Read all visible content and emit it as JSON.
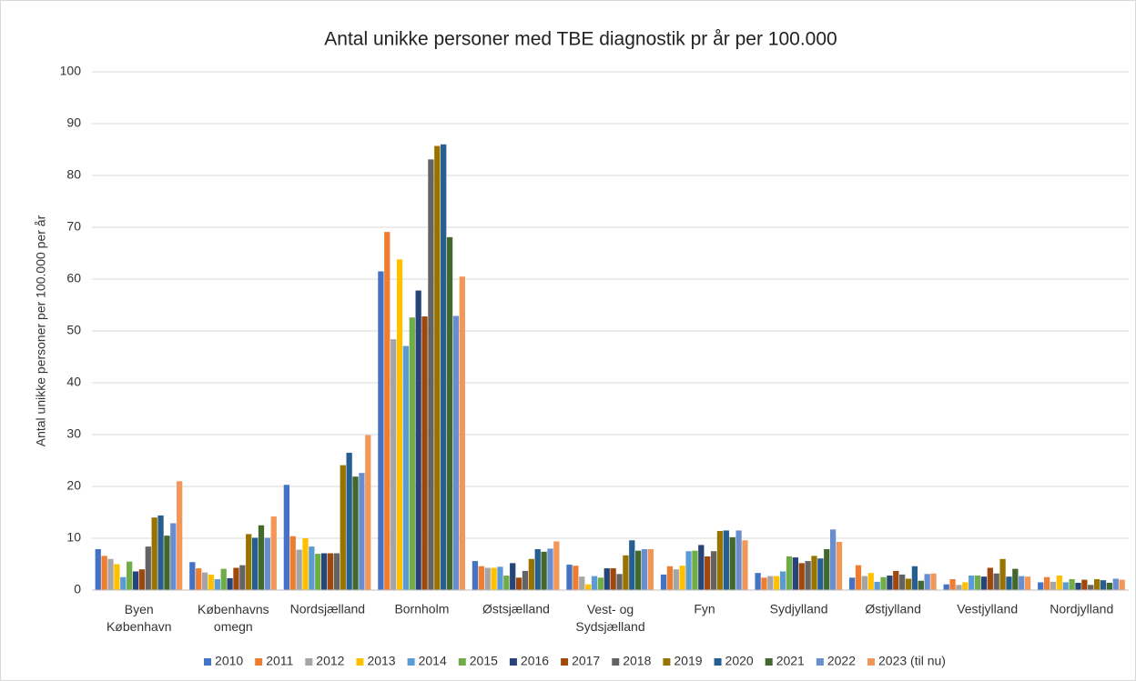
{
  "chart_data": {
    "type": "bar",
    "title": "Antal unikke personer med TBE diagnostik pr år per 100.000",
    "ylabel": "Antal unikke personer  per 100.000 per år",
    "categories": [
      "Byen København",
      "Københavns omegn",
      "Nordsjælland",
      "Bornholm",
      "Østsjælland",
      "Vest- og Sydsjælland",
      "Fyn",
      "Sydjylland",
      "Østjylland",
      "Vestjylland",
      "Nordjylland"
    ],
    "series": [
      {
        "name": "2010",
        "color": "#4472c4",
        "values": [
          7.9,
          5.4,
          20.3,
          61.5,
          5.6,
          4.9,
          3.0,
          3.3,
          2.4,
          1.1,
          1.5
        ]
      },
      {
        "name": "2011",
        "color": "#ed7d31",
        "values": [
          6.6,
          4.2,
          10.4,
          69.1,
          4.6,
          4.7,
          4.6,
          2.4,
          4.8,
          2.1,
          2.5
        ]
      },
      {
        "name": "2012",
        "color": "#a5a5a5",
        "values": [
          6.0,
          3.4,
          7.8,
          48.4,
          4.3,
          2.6,
          4.0,
          2.7,
          2.7,
          1.0,
          1.6
        ]
      },
      {
        "name": "2013",
        "color": "#ffc000",
        "values": [
          5.0,
          3.0,
          10.0,
          63.8,
          4.3,
          1.1,
          4.7,
          2.7,
          3.3,
          1.5,
          2.8
        ]
      },
      {
        "name": "2014",
        "color": "#5b9bd5",
        "values": [
          2.5,
          2.1,
          8.4,
          47.1,
          4.5,
          2.7,
          7.5,
          3.6,
          1.6,
          2.8,
          1.5
        ]
      },
      {
        "name": "2015",
        "color": "#70ad47",
        "values": [
          5.5,
          4.1,
          7.0,
          52.6,
          2.8,
          2.4,
          7.6,
          6.5,
          2.5,
          2.8,
          2.1
        ]
      },
      {
        "name": "2016",
        "color": "#264478",
        "values": [
          3.6,
          2.3,
          7.1,
          57.8,
          5.2,
          4.2,
          8.7,
          6.3,
          2.8,
          2.6,
          1.4
        ]
      },
      {
        "name": "2017",
        "color": "#9e480e",
        "values": [
          4.0,
          4.3,
          7.1,
          52.8,
          2.4,
          4.2,
          6.5,
          5.2,
          3.7,
          4.3,
          2.0
        ]
      },
      {
        "name": "2018",
        "color": "#636363",
        "values": [
          8.4,
          4.8,
          7.1,
          83.1,
          3.7,
          3.1,
          7.5,
          5.6,
          3.0,
          3.2,
          1.0
        ]
      },
      {
        "name": "2019",
        "color": "#997300",
        "values": [
          14.0,
          10.8,
          24.1,
          85.7,
          6.0,
          6.7,
          11.4,
          6.6,
          2.2,
          6.0,
          2.1
        ]
      },
      {
        "name": "2020",
        "color": "#255e91",
        "values": [
          14.4,
          10.1,
          26.5,
          86.0,
          7.9,
          9.6,
          11.5,
          6.1,
          4.6,
          2.6,
          1.9
        ]
      },
      {
        "name": "2021",
        "color": "#43682b",
        "values": [
          10.5,
          12.5,
          21.9,
          68.1,
          7.4,
          7.6,
          10.2,
          7.9,
          1.8,
          4.1,
          1.4
        ]
      },
      {
        "name": "2022",
        "color": "#698ed0",
        "values": [
          12.9,
          10.1,
          22.6,
          52.9,
          8.0,
          7.9,
          11.5,
          11.7,
          3.1,
          2.7,
          2.2
        ]
      },
      {
        "name": "2023 (til nu)",
        "color": "#f1975a",
        "values": [
          21.0,
          14.2,
          29.9,
          60.5,
          9.4,
          7.9,
          9.6,
          9.3,
          3.2,
          2.6,
          2.0
        ]
      }
    ],
    "ylim": [
      0,
      100
    ],
    "yticks": [
      0,
      10,
      20,
      30,
      40,
      50,
      60,
      70,
      80,
      90,
      100
    ],
    "grid": true,
    "legend": "bottom"
  }
}
